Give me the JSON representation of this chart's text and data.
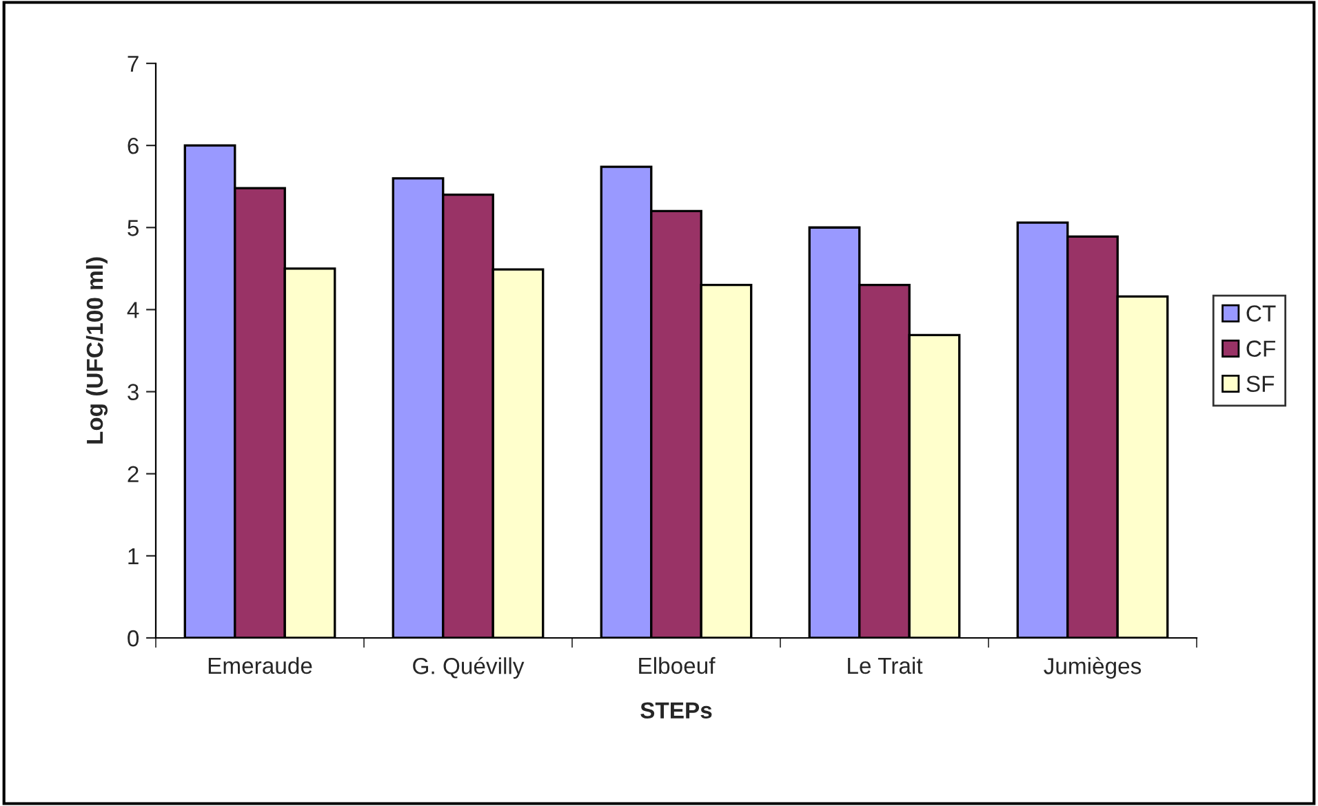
{
  "chart_data": {
    "type": "bar",
    "xlabel": "STEPs",
    "ylabel": "Log (UFC/100 ml)",
    "categories": [
      "Emeraude",
      "G. Quévilly",
      "Elboeuf",
      "Le Trait",
      "Jumièges"
    ],
    "series": [
      {
        "name": "CT",
        "color": "#9999ff",
        "values": [
          6.0,
          5.6,
          5.74,
          5.0,
          5.06
        ]
      },
      {
        "name": "CF",
        "color": "#993366",
        "values": [
          5.48,
          5.4,
          5.2,
          4.3,
          4.89
        ]
      },
      {
        "name": "SF",
        "color": "#ffffcc",
        "values": [
          4.5,
          4.49,
          4.3,
          3.69,
          4.16
        ]
      }
    ],
    "ylim": [
      0,
      7
    ],
    "yticks": [
      0,
      1,
      2,
      3,
      4,
      5,
      6,
      7
    ],
    "grid": false,
    "legend": "right"
  }
}
